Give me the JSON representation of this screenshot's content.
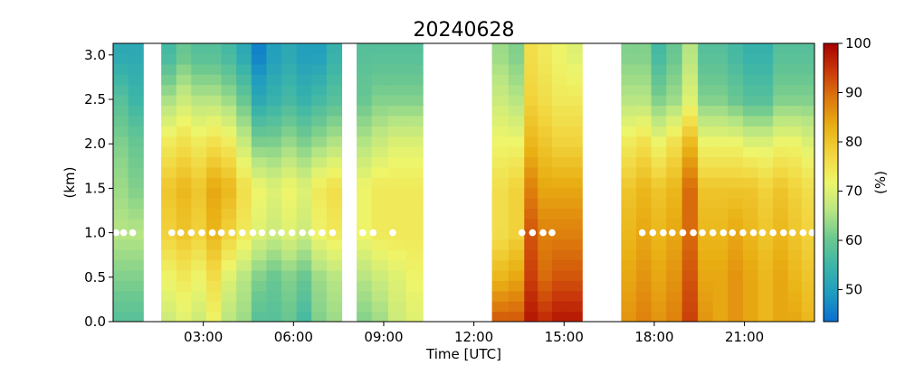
{
  "chart_data": {
    "type": "heatmap",
    "title": "20240628",
    "xlabel": "Time [UTC]",
    "ylabel": "(km)",
    "colorbar_label": "(%)",
    "x_ticks": [
      "03:00",
      "06:00",
      "09:00",
      "12:00",
      "15:00",
      "18:00",
      "21:00"
    ],
    "x_tick_hours": [
      3,
      6,
      9,
      12,
      15,
      18,
      21
    ],
    "y_ticks": [
      "0.0",
      "0.5",
      "1.0",
      "1.5",
      "2.0",
      "2.5",
      "3.0"
    ],
    "y_tick_values": [
      0.0,
      0.5,
      1.0,
      1.5,
      2.0,
      2.5,
      3.0
    ],
    "colorbar_ticks": [
      "50",
      "60",
      "70",
      "80",
      "90",
      "100"
    ],
    "colorbar_tick_values": [
      50,
      60,
      70,
      80,
      90,
      100
    ],
    "x_range_hours": [
      0,
      23.33
    ],
    "y_range_km": [
      0,
      3.13
    ],
    "colorbar_range": [
      43.5,
      100
    ],
    "colormap": [
      "#0a6fd0",
      "#1f9cc0",
      "#3cb5a8",
      "#6cc890",
      "#b9e683",
      "#eef56a",
      "#f2d640",
      "#e9b014",
      "#dd7a0c",
      "#c93a0a",
      "#a80000"
    ],
    "height_levels_km": [
      0.0,
      0.5,
      1.0,
      1.5,
      2.0,
      2.5,
      3.0
    ],
    "dot_height_km": 1.0,
    "columns": [
      {
        "t": 0.25,
        "rh": [
          58,
          62,
          66,
          64,
          62,
          58,
          52
        ]
      },
      {
        "t": 0.75,
        "rh": [
          58,
          62,
          66,
          62,
          60,
          55,
          52
        ]
      },
      {
        "t": 1.85,
        "rh": [
          68,
          72,
          78,
          80,
          74,
          65,
          56
        ]
      },
      {
        "t": 2.35,
        "rh": [
          70,
          74,
          80,
          82,
          76,
          68,
          60
        ]
      },
      {
        "t": 2.85,
        "rh": [
          68,
          72,
          78,
          80,
          74,
          66,
          58
        ]
      },
      {
        "t": 3.35,
        "rh": [
          72,
          76,
          82,
          84,
          76,
          66,
          58
        ]
      },
      {
        "t": 3.85,
        "rh": [
          66,
          70,
          78,
          82,
          74,
          64,
          56
        ]
      },
      {
        "t": 4.35,
        "rh": [
          64,
          66,
          74,
          76,
          68,
          60,
          52
        ]
      },
      {
        "t": 4.85,
        "rh": [
          58,
          62,
          70,
          72,
          62,
          52,
          46
        ]
      },
      {
        "t": 5.35,
        "rh": [
          58,
          60,
          68,
          70,
          62,
          54,
          50
        ]
      },
      {
        "t": 5.85,
        "rh": [
          60,
          62,
          70,
          72,
          64,
          56,
          52
        ]
      },
      {
        "t": 6.35,
        "rh": [
          56,
          60,
          68,
          70,
          62,
          54,
          50
        ]
      },
      {
        "t": 6.85,
        "rh": [
          62,
          64,
          72,
          74,
          64,
          56,
          50
        ]
      },
      {
        "t": 7.35,
        "rh": [
          64,
          66,
          74,
          76,
          66,
          58,
          54
        ]
      },
      {
        "t": 8.35,
        "rh": [
          62,
          66,
          72,
          72,
          66,
          60,
          58
        ]
      },
      {
        "t": 8.85,
        "rh": [
          64,
          68,
          74,
          74,
          68,
          62,
          58
        ]
      },
      {
        "t": 9.45,
        "rh": [
          68,
          70,
          74,
          74,
          70,
          62,
          58
        ]
      },
      {
        "t": 10.05,
        "rh": [
          70,
          72,
          74,
          74,
          70,
          62,
          58
        ]
      },
      {
        "t": 12.85,
        "rh": [
          92,
          82,
          76,
          76,
          72,
          68,
          64
        ]
      },
      {
        "t": 13.45,
        "rh": [
          92,
          84,
          78,
          78,
          72,
          66,
          62
        ]
      },
      {
        "t": 13.9,
        "rh": [
          98,
          94,
          92,
          88,
          82,
          78,
          76
        ]
      },
      {
        "t": 14.35,
        "rh": [
          96,
          90,
          88,
          84,
          80,
          76,
          74
        ]
      },
      {
        "t": 14.85,
        "rh": [
          98,
          92,
          88,
          84,
          78,
          74,
          72
        ]
      },
      {
        "t": 15.35,
        "rh": [
          98,
          92,
          88,
          84,
          78,
          74,
          70
        ]
      },
      {
        "t": 17.15,
        "rh": [
          86,
          84,
          82,
          80,
          74,
          66,
          62
        ]
      },
      {
        "t": 17.65,
        "rh": [
          88,
          86,
          84,
          82,
          76,
          66,
          62
        ]
      },
      {
        "t": 18.15,
        "rh": [
          86,
          84,
          82,
          80,
          72,
          62,
          56
        ]
      },
      {
        "t": 18.65,
        "rh": [
          88,
          86,
          84,
          82,
          76,
          64,
          60
        ]
      },
      {
        "t": 19.2,
        "rh": [
          94,
          92,
          90,
          90,
          82,
          70,
          66
        ]
      },
      {
        "t": 19.7,
        "rh": [
          86,
          84,
          82,
          80,
          72,
          62,
          58
        ]
      },
      {
        "t": 20.2,
        "rh": [
          84,
          84,
          82,
          80,
          72,
          62,
          58
        ]
      },
      {
        "t": 20.7,
        "rh": [
          86,
          86,
          84,
          80,
          72,
          60,
          56
        ]
      },
      {
        "t": 21.2,
        "rh": [
          84,
          84,
          82,
          80,
          70,
          58,
          54
        ]
      },
      {
        "t": 21.7,
        "rh": [
          82,
          82,
          80,
          78,
          70,
          58,
          54
        ]
      },
      {
        "t": 22.2,
        "rh": [
          84,
          84,
          82,
          80,
          72,
          62,
          58
        ]
      },
      {
        "t": 22.7,
        "rh": [
          84,
          82,
          80,
          78,
          72,
          62,
          58
        ]
      },
      {
        "t": 23.1,
        "rh": [
          82,
          80,
          78,
          76,
          70,
          62,
          58
        ]
      }
    ],
    "dot_times": [
      0.1,
      0.35,
      0.65,
      1.95,
      2.25,
      2.6,
      2.95,
      3.3,
      3.6,
      3.95,
      4.3,
      4.65,
      4.95,
      5.3,
      5.6,
      5.95,
      6.3,
      6.6,
      6.95,
      7.3,
      8.3,
      8.65,
      9.3,
      13.6,
      13.95,
      14.3,
      14.6,
      17.6,
      17.95,
      18.3,
      18.6,
      18.95,
      19.3,
      19.6,
      19.95,
      20.3,
      20.6,
      20.95,
      21.3,
      21.6,
      21.95,
      22.3,
      22.6,
      22.95,
      23.25
    ]
  }
}
